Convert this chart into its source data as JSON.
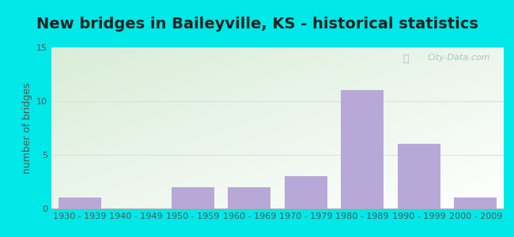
{
  "title": "New bridges in Baileyville, KS - historical statistics",
  "ylabel": "number of bridges",
  "categories": [
    "1930 - 1939",
    "1940 - 1949",
    "1950 - 1959",
    "1960 - 1969",
    "1970 - 1979",
    "1980 - 1989",
    "1990 - 1999",
    "2000 - 2009"
  ],
  "values": [
    1,
    0,
    2,
    2,
    3,
    11,
    6,
    1
  ],
  "bar_color": "#b8a8d8",
  "ylim": [
    0,
    15
  ],
  "yticks": [
    0,
    5,
    10,
    15
  ],
  "background_outer": "#00e8e8",
  "background_inner_top_left": "#d8edd8",
  "background_inner_bottom_right": "#ffffff",
  "grid_color": "#e0dde8",
  "title_fontsize": 14,
  "axis_label_fontsize": 9,
  "tick_fontsize": 8,
  "watermark": "City-Data.com"
}
